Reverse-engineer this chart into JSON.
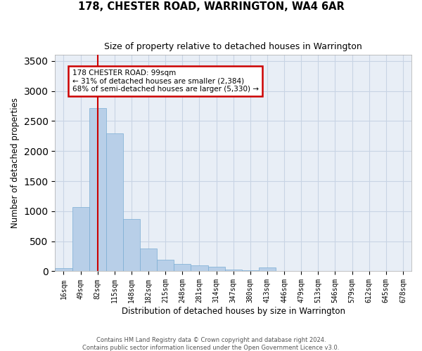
{
  "title": "178, CHESTER ROAD, WARRINGTON, WA4 6AR",
  "subtitle": "Size of property relative to detached houses in Warrington",
  "xlabel": "Distribution of detached houses by size in Warrington",
  "ylabel": "Number of detached properties",
  "bar_color": "#b8cfe8",
  "bar_edge_color": "#7aadd4",
  "grid_color": "#c8d4e4",
  "background_color": "#e8eef6",
  "annotation_text": "178 CHESTER ROAD: 99sqm\n← 31% of detached houses are smaller (2,384)\n68% of semi-detached houses are larger (5,330) →",
  "annotation_box_color": "#ffffff",
  "annotation_box_edge": "#cc0000",
  "vline_color": "#cc0000",
  "vline_x_idx": 2,
  "categories": [
    "16sqm",
    "49sqm",
    "82sqm",
    "115sqm",
    "148sqm",
    "182sqm",
    "215sqm",
    "248sqm",
    "281sqm",
    "314sqm",
    "347sqm",
    "380sqm",
    "413sqm",
    "446sqm",
    "479sqm",
    "513sqm",
    "546sqm",
    "579sqm",
    "612sqm",
    "645sqm",
    "678sqm"
  ],
  "bar_heights": [
    50,
    1070,
    2720,
    2300,
    870,
    380,
    190,
    120,
    100,
    70,
    30,
    20,
    60,
    0,
    0,
    0,
    0,
    0,
    0,
    0,
    0
  ],
  "ylim": [
    0,
    3600
  ],
  "yticks": [
    0,
    500,
    1000,
    1500,
    2000,
    2500,
    3000,
    3500
  ],
  "footnote1": "Contains HM Land Registry data © Crown copyright and database right 2024.",
  "footnote2": "Contains public sector information licensed under the Open Government Licence v3.0."
}
